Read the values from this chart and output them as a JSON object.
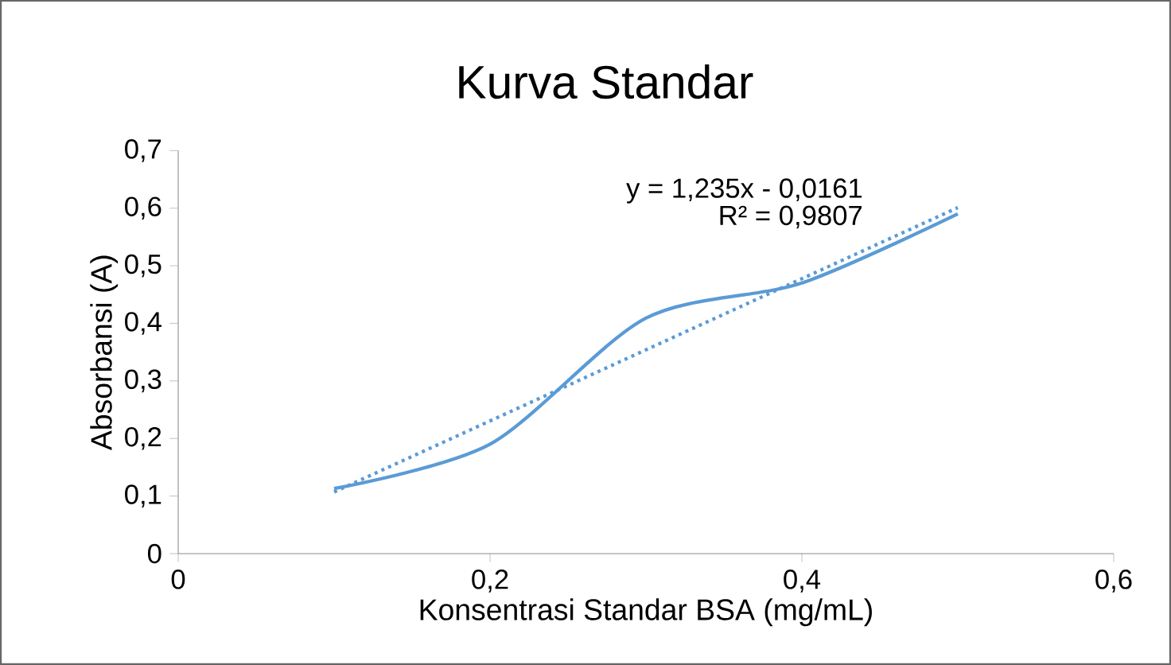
{
  "chart_data": {
    "type": "line",
    "title": "Kurva Standar",
    "xlabel": "Konsentrasi Standar BSA (mg/mL)",
    "ylabel": "Absorbansi (A)",
    "x": [
      0.1,
      0.2,
      0.3,
      0.4,
      0.5
    ],
    "series": [
      {
        "color": "#5b9bd5",
        "values": [
          0.113,
          0.19,
          0.409,
          0.47,
          0.59
        ],
        "line_style": "solid"
      },
      {
        "color": "#5b9bd5",
        "x": [
          0.1,
          0.5
        ],
        "values": [
          0.107,
          0.601
        ],
        "line_style": "dotted"
      }
    ],
    "xlim": [
      0,
      0.6
    ],
    "ylim": [
      0,
      0.7
    ],
    "xticks": [
      0,
      {
        "value": 0.2,
        "label": "0,2"
      },
      {
        "value": 0.4,
        "label": "0,4"
      },
      {
        "value": 0.6,
        "label": "0,6"
      }
    ],
    "yticks": [
      0,
      {
        "value": 0.1,
        "label": "0,1"
      },
      {
        "value": 0.2,
        "label": "0,2"
      },
      {
        "value": 0.3,
        "label": "0,3"
      },
      {
        "value": 0.4,
        "label": "0,4"
      },
      {
        "value": 0.5,
        "label": "0,5"
      },
      {
        "value": 0.6,
        "label": "0,6"
      },
      {
        "value": 0.7,
        "label": "0,7"
      }
    ],
    "annotations": [
      "y = 1,235x - 0,0161",
      "R² = 0,9807"
    ],
    "grid": false
  }
}
